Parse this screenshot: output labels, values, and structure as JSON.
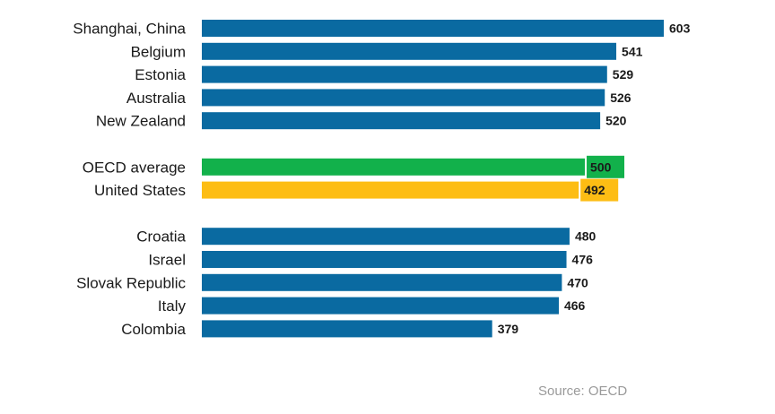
{
  "chart_data": {
    "type": "bar",
    "orientation": "horizontal",
    "categories": [
      "Shanghai, China",
      "Belgium",
      "Estonia",
      "Australia",
      "New Zealand",
      "OECD average",
      "United States",
      "Croatia",
      "Israel",
      "Slovak Republic",
      "Italy",
      "Colombia"
    ],
    "values": [
      603,
      541,
      529,
      526,
      520,
      500,
      492,
      480,
      476,
      470,
      466,
      379
    ],
    "value_labels": [
      "603",
      "541",
      "529",
      "526",
      "520",
      "500",
      "492",
      "480",
      "476",
      "470",
      "466",
      "379"
    ],
    "groups": [
      {
        "start": 0,
        "count": 5
      },
      {
        "start": 5,
        "count": 2
      },
      {
        "start": 7,
        "count": 5
      }
    ],
    "bar_colors": [
      "#0a6aa1",
      "#0a6aa1",
      "#0a6aa1",
      "#0a6aa1",
      "#0a6aa1",
      "#12b14b",
      "#fdbd14",
      "#0a6aa1",
      "#0a6aa1",
      "#0a6aa1",
      "#0a6aa1",
      "#0a6aa1"
    ],
    "highlight_value_bg": {
      "5": "#12b14b",
      "6": "#fdbd14"
    },
    "grid": false,
    "xlabel": "",
    "ylabel": ""
  },
  "source": "Source: OECD"
}
